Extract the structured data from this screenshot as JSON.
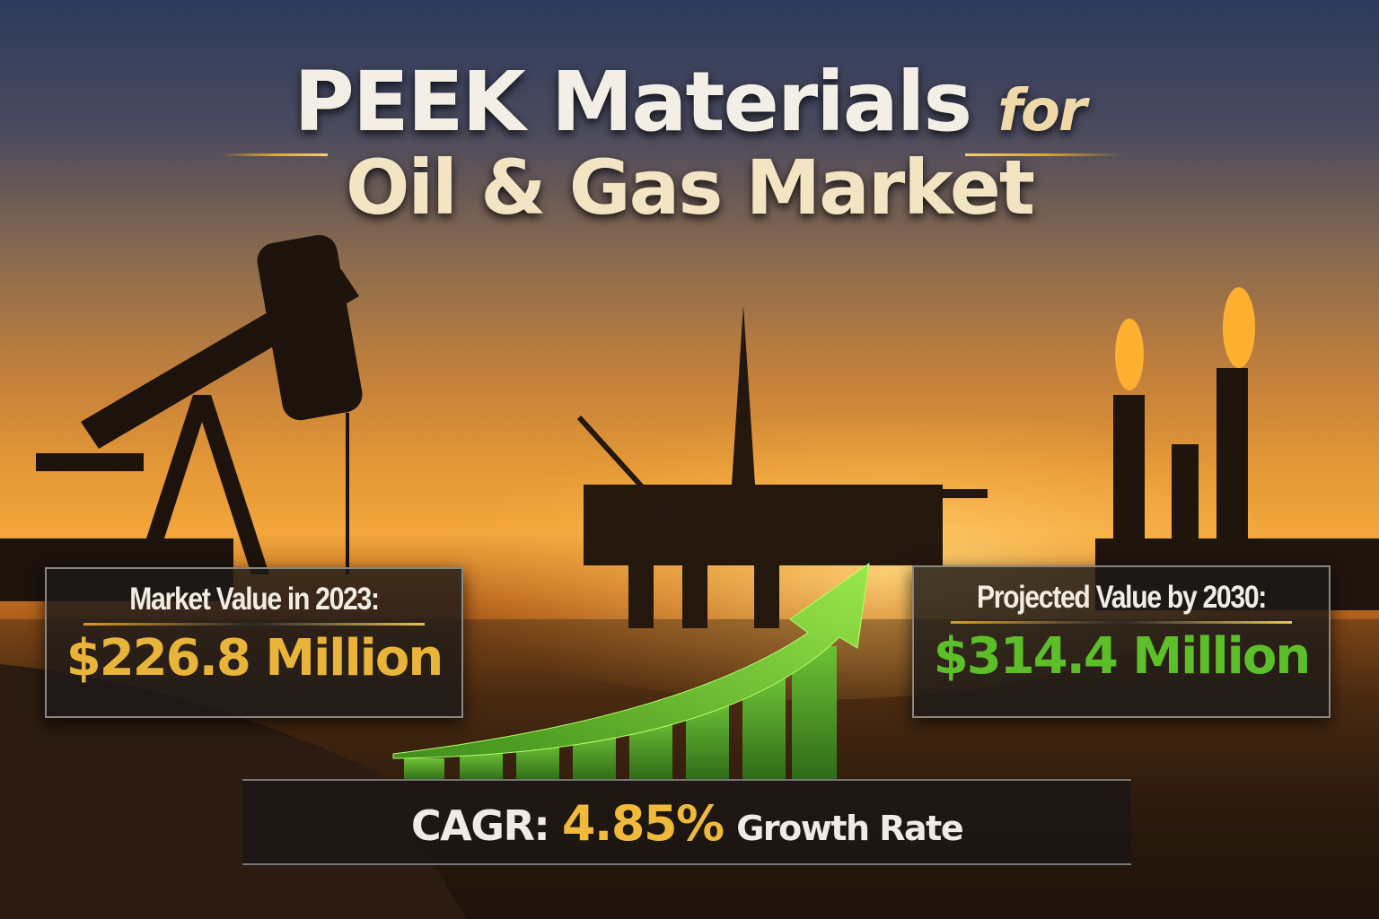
{
  "title": {
    "line1": "PEEK Materials",
    "line1_suffix": "for",
    "line2": "Oil & Gas Market"
  },
  "left_card": {
    "label": "Market Value in 2023:",
    "value": "$226.8 Million",
    "value_color": "#e8b43a"
  },
  "right_card": {
    "label": "Projected Value by 2030:",
    "value": "$314.4 Million",
    "value_color": "#5cbf2a"
  },
  "cagr": {
    "label": "CAGR:",
    "value": "4.85%",
    "suffix": "Growth Rate"
  },
  "colors": {
    "accent_gold": "#e0a92c",
    "arrow_green": "#7ed531",
    "bar_green": "#4d9a2a"
  }
}
